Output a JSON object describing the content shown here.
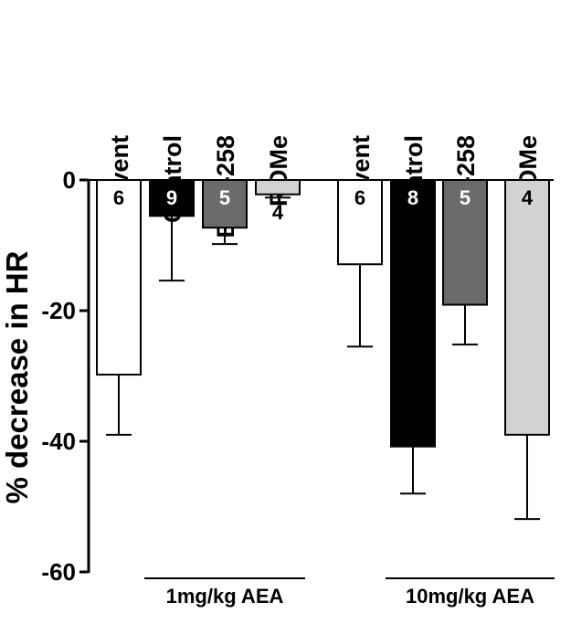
{
  "chart_data": {
    "type": "bar",
    "ylabel": "% decrease in HR",
    "ylim": [
      -60,
      0
    ],
    "yticks": [
      0,
      -20,
      -40,
      -60
    ],
    "categories": [
      "Solvent",
      "Control",
      "BML-258",
      "ROMe",
      "Solvent",
      "Control",
      "BML-258",
      "ROMe"
    ],
    "values": [
      -29.8,
      -5.5,
      -7.3,
      -2.2,
      -12.9,
      -40.8,
      -19.1,
      -39.0
    ],
    "errors": [
      9.2,
      9.9,
      2.5,
      0.5,
      12.6,
      7.2,
      6.1,
      12.9
    ],
    "n": [
      "6",
      "9",
      "5",
      "4",
      "6",
      "8",
      "5",
      "4"
    ],
    "bar_colors": [
      "#ffffff",
      "#000000",
      "#6b6b6b",
      "#d2d2d2",
      "#ffffff",
      "#000000",
      "#6b6b6b",
      "#d2d2d2"
    ],
    "n_colors": [
      "#000000",
      "#ffffff",
      "#ffffff",
      "#000000",
      "#000000",
      "#ffffff",
      "#ffffff",
      "#000000"
    ],
    "groups": [
      {
        "label": "1mg/kg AEA",
        "from": 1,
        "to": 3
      },
      {
        "label": "10mg/kg AEA",
        "from": 5,
        "to": 7
      }
    ],
    "grid": false
  }
}
